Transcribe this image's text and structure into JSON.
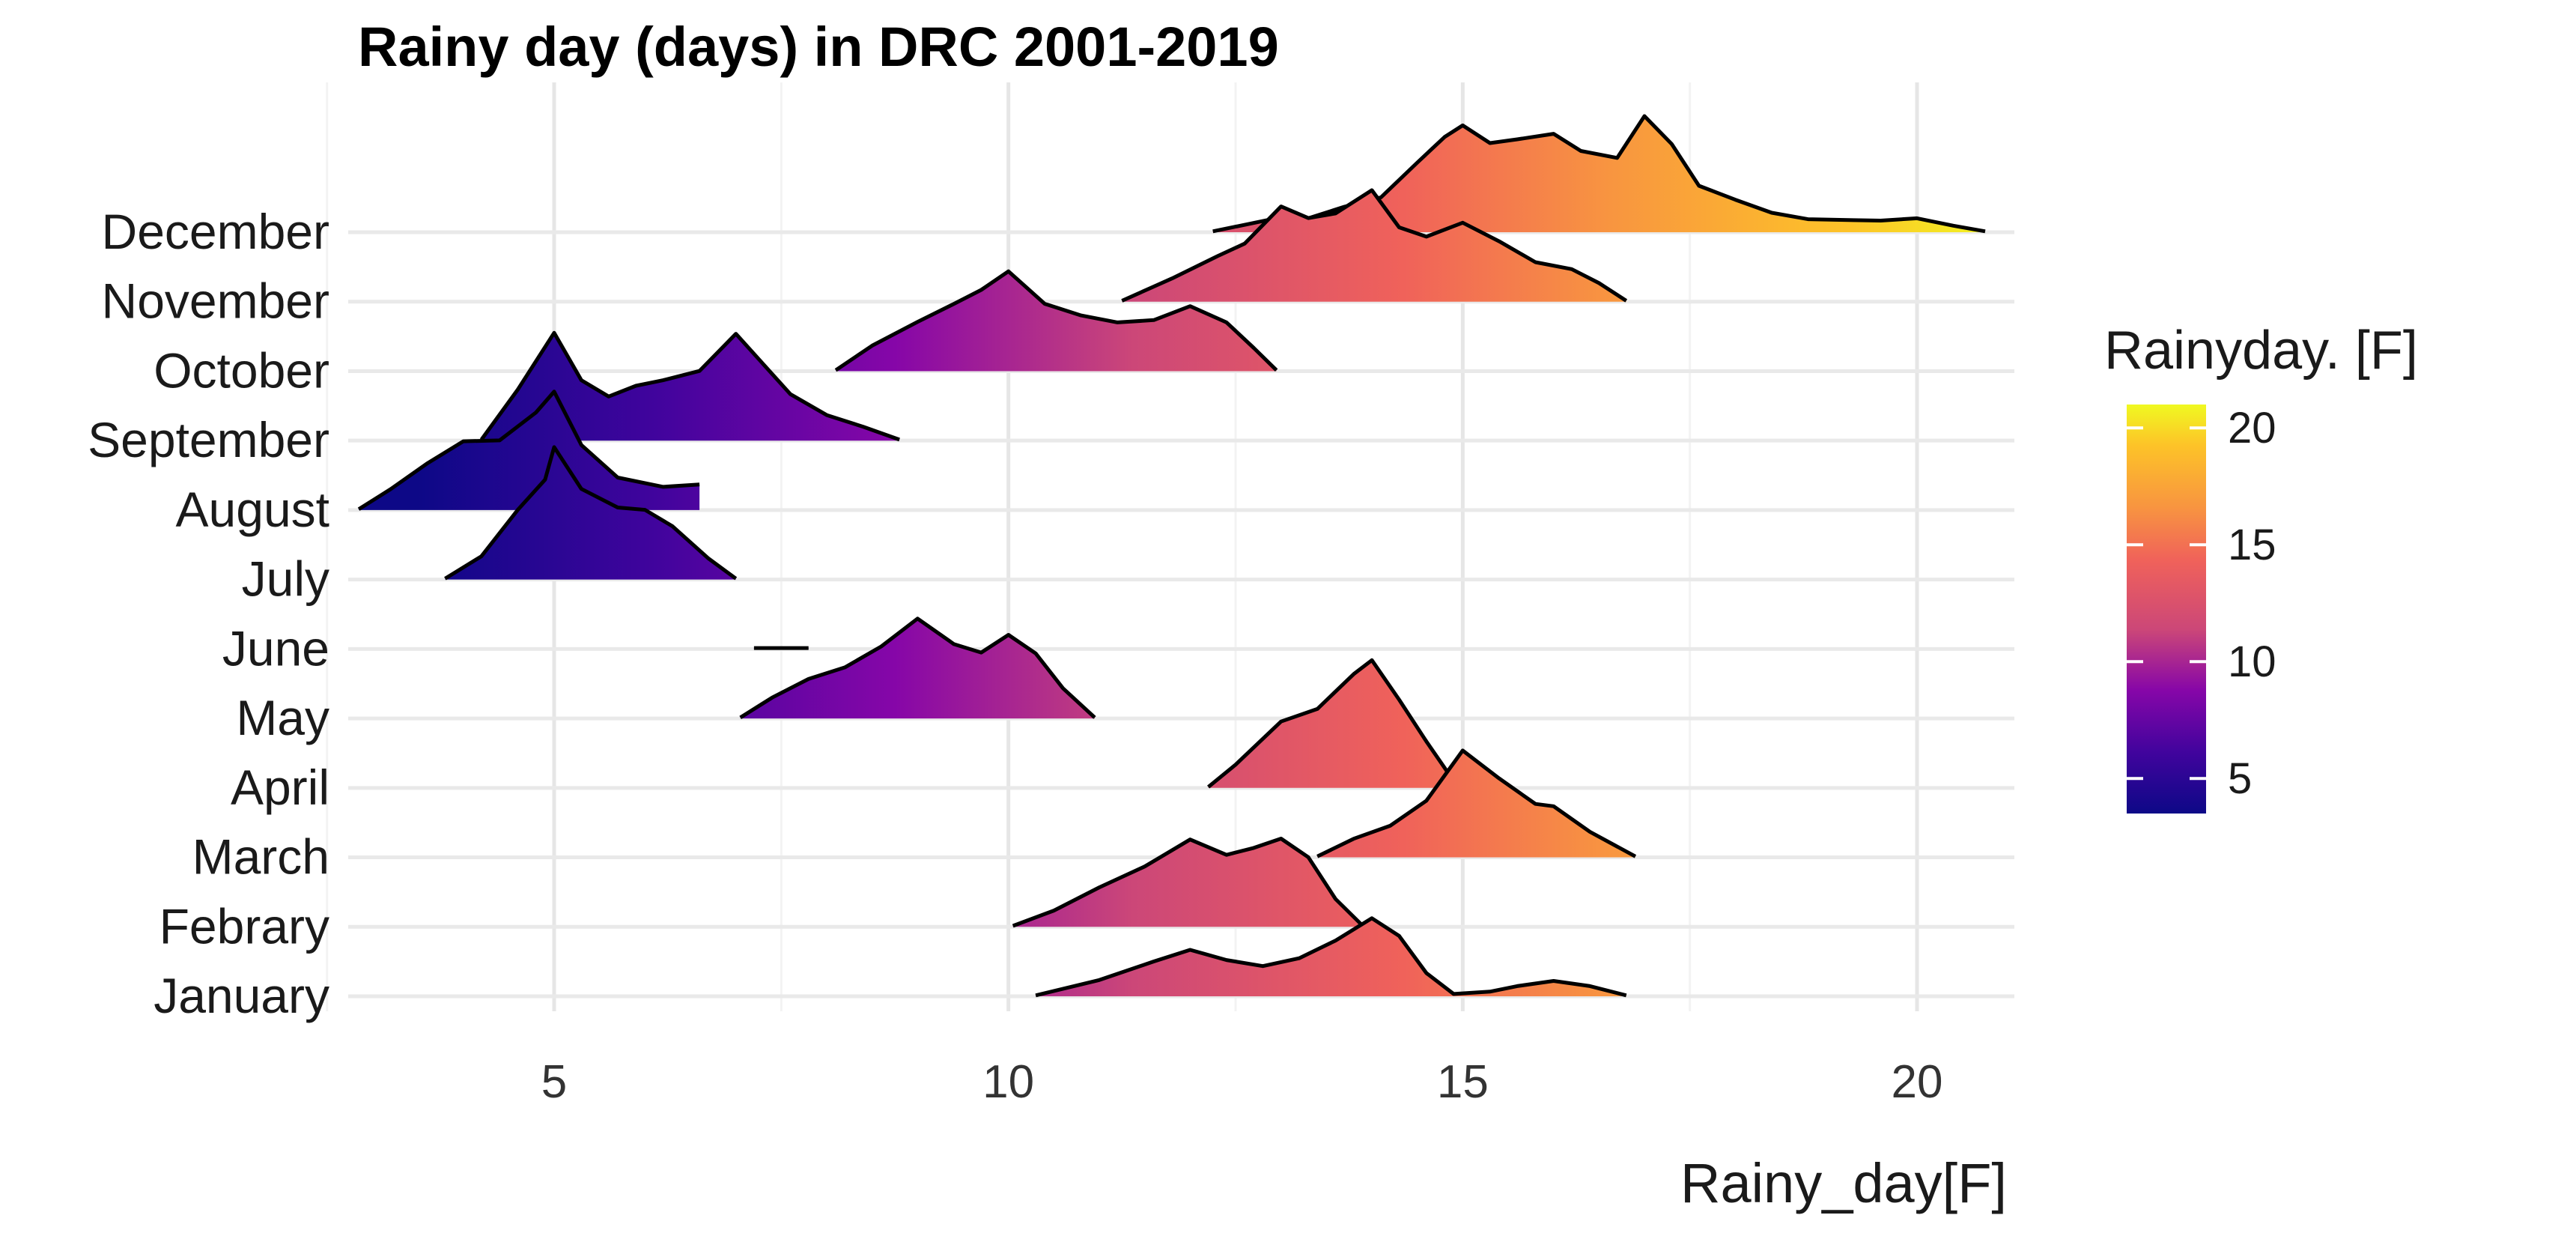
{
  "chart_data": {
    "type": "ridgeline",
    "title": "Rainy day (days) in DRC 2001-2019",
    "xlabel": "Rainy_day[F]",
    "ylabel": "",
    "xlim": [
      2.8,
      21.0
    ],
    "xticks": [
      5,
      10,
      15,
      20
    ],
    "xtick_labels": [
      "5",
      "10",
      "15",
      "20"
    ],
    "grid": true,
    "legend": {
      "title": "Rainyday. [F]",
      "position": "right",
      "range": [
        3.5,
        21
      ],
      "ticks": [
        5,
        10,
        15,
        20
      ],
      "tick_labels": [
        "5",
        "10",
        "15",
        "20"
      ],
      "colormap": "plasma"
    },
    "categories": [
      "January",
      "Febrary",
      "March",
      "April",
      "May",
      "June",
      "July",
      "August",
      "September",
      "October",
      "November",
      "December"
    ],
    "series": [
      {
        "name": "January",
        "density": [
          [
            10.3,
            0.02
          ],
          [
            11.0,
            0.35
          ],
          [
            11.6,
            0.75
          ],
          [
            12.0,
            1.0
          ],
          [
            12.4,
            0.78
          ],
          [
            12.8,
            0.65
          ],
          [
            13.2,
            0.82
          ],
          [
            13.6,
            1.2
          ],
          [
            14.0,
            1.68
          ],
          [
            14.3,
            1.3
          ],
          [
            14.6,
            0.5
          ],
          [
            14.9,
            0.05
          ],
          [
            15.3,
            0.1
          ],
          [
            15.6,
            0.22
          ],
          [
            16.0,
            0.33
          ],
          [
            16.4,
            0.22
          ],
          [
            16.8,
            0.02
          ]
        ]
      },
      {
        "name": "Febrary",
        "density": [
          [
            10.05,
            0.02
          ],
          [
            10.5,
            0.35
          ],
          [
            11.0,
            0.85
          ],
          [
            11.5,
            1.3
          ],
          [
            12.0,
            1.88
          ],
          [
            12.4,
            1.55
          ],
          [
            12.7,
            1.7
          ],
          [
            13.0,
            1.9
          ],
          [
            13.3,
            1.5
          ],
          [
            13.6,
            0.6
          ],
          [
            13.9,
            0.02
          ]
        ]
      },
      {
        "name": "March",
        "density": [
          [
            13.4,
            0.02
          ],
          [
            13.8,
            0.4
          ],
          [
            14.2,
            0.68
          ],
          [
            14.6,
            1.22
          ],
          [
            15.0,
            2.3
          ],
          [
            15.4,
            1.7
          ],
          [
            15.8,
            1.15
          ],
          [
            16.0,
            1.1
          ],
          [
            16.4,
            0.55
          ],
          [
            16.9,
            0.02
          ]
        ]
      },
      {
        "name": "April",
        "density": [
          [
            12.2,
            0.02
          ],
          [
            12.5,
            0.5
          ],
          [
            13.0,
            1.43
          ],
          [
            13.4,
            1.7
          ],
          [
            13.8,
            2.45
          ],
          [
            14.0,
            2.75
          ],
          [
            14.3,
            1.9
          ],
          [
            14.6,
            1.0
          ],
          [
            14.9,
            0.15
          ],
          [
            15.0,
            0.02
          ]
        ]
      },
      {
        "name": "May",
        "density": [
          [
            7.05,
            0.02
          ],
          [
            7.4,
            0.45
          ],
          [
            7.8,
            0.85
          ],
          [
            8.2,
            1.1
          ],
          [
            8.6,
            1.55
          ],
          [
            9.0,
            2.15
          ],
          [
            9.4,
            1.6
          ],
          [
            9.7,
            1.42
          ],
          [
            10.0,
            1.8
          ],
          [
            10.3,
            1.4
          ],
          [
            10.6,
            0.65
          ],
          [
            10.95,
            0.02
          ]
        ]
      },
      {
        "name": "June",
        "density": [
          [
            7.2,
            0.02
          ],
          [
            7.8,
            0.02
          ]
        ]
      },
      {
        "name": "July",
        "density": [
          [
            3.8,
            0.02
          ],
          [
            4.2,
            0.5
          ],
          [
            4.6,
            1.5
          ],
          [
            4.9,
            2.15
          ],
          [
            5.0,
            2.85
          ],
          [
            5.3,
            1.95
          ],
          [
            5.7,
            1.55
          ],
          [
            6.0,
            1.5
          ],
          [
            6.3,
            1.15
          ],
          [
            6.7,
            0.45
          ],
          [
            7.0,
            0.02
          ]
        ]
      },
      {
        "name": "August",
        "density": [
          [
            2.85,
            0.02
          ],
          [
            3.2,
            0.45
          ],
          [
            3.6,
            1.0
          ],
          [
            4.0,
            1.48
          ],
          [
            4.4,
            1.5
          ],
          [
            4.8,
            2.1
          ],
          [
            5.0,
            2.55
          ],
          [
            5.3,
            1.4
          ],
          [
            5.7,
            0.7
          ],
          [
            6.2,
            0.5
          ],
          [
            6.6,
            0.55
          ]
        ]
      },
      {
        "name": "September",
        "density": [
          [
            4.2,
            0.02
          ],
          [
            4.6,
            1.1
          ],
          [
            5.0,
            2.32
          ],
          [
            5.3,
            1.3
          ],
          [
            5.6,
            0.95
          ],
          [
            5.9,
            1.18
          ],
          [
            6.2,
            1.3
          ],
          [
            6.6,
            1.5
          ],
          [
            7.0,
            2.3
          ],
          [
            7.3,
            1.65
          ],
          [
            7.6,
            1.0
          ],
          [
            8.0,
            0.55
          ],
          [
            8.4,
            0.3
          ],
          [
            8.8,
            0.02
          ]
        ]
      },
      {
        "name": "October",
        "density": [
          [
            8.1,
            0.02
          ],
          [
            8.5,
            0.55
          ],
          [
            9.0,
            1.06
          ],
          [
            9.4,
            1.45
          ],
          [
            9.7,
            1.75
          ],
          [
            10.0,
            2.15
          ],
          [
            10.4,
            1.45
          ],
          [
            10.8,
            1.2
          ],
          [
            11.2,
            1.05
          ],
          [
            11.6,
            1.1
          ],
          [
            12.0,
            1.4
          ],
          [
            12.4,
            1.05
          ],
          [
            12.7,
            0.5
          ],
          [
            12.95,
            0.02
          ]
        ]
      },
      {
        "name": "November",
        "density": [
          [
            11.25,
            0.02
          ],
          [
            11.8,
            0.5
          ],
          [
            12.3,
            0.98
          ],
          [
            12.6,
            1.25
          ],
          [
            13.0,
            2.05
          ],
          [
            13.3,
            1.8
          ],
          [
            13.6,
            1.9
          ],
          [
            14.0,
            2.4
          ],
          [
            14.3,
            1.6
          ],
          [
            14.6,
            1.4
          ],
          [
            15.0,
            1.7
          ],
          [
            15.4,
            1.3
          ],
          [
            15.8,
            0.85
          ],
          [
            16.2,
            0.7
          ],
          [
            16.5,
            0.4
          ],
          [
            16.8,
            0.02
          ]
        ]
      },
      {
        "name": "December",
        "density": [
          [
            12.25,
            0.02
          ],
          [
            12.5,
            0.12
          ],
          [
            12.9,
            0.28
          ],
          [
            13.3,
            0.3
          ],
          [
            13.7,
            0.55
          ],
          [
            14.1,
            0.75
          ],
          [
            14.5,
            1.5
          ],
          [
            14.8,
            2.05
          ],
          [
            15.0,
            2.3
          ],
          [
            15.3,
            1.92
          ],
          [
            15.6,
            2.0
          ],
          [
            16.0,
            2.12
          ],
          [
            16.3,
            1.75
          ],
          [
            16.7,
            1.6
          ],
          [
            17.0,
            2.5
          ],
          [
            17.3,
            1.9
          ],
          [
            17.6,
            1.0
          ],
          [
            18.0,
            0.7
          ],
          [
            18.4,
            0.42
          ],
          [
            18.8,
            0.28
          ],
          [
            19.3,
            0.26
          ],
          [
            19.6,
            0.25
          ],
          [
            20.0,
            0.3
          ],
          [
            20.4,
            0.14
          ],
          [
            20.75,
            0.02
          ]
        ]
      }
    ]
  }
}
